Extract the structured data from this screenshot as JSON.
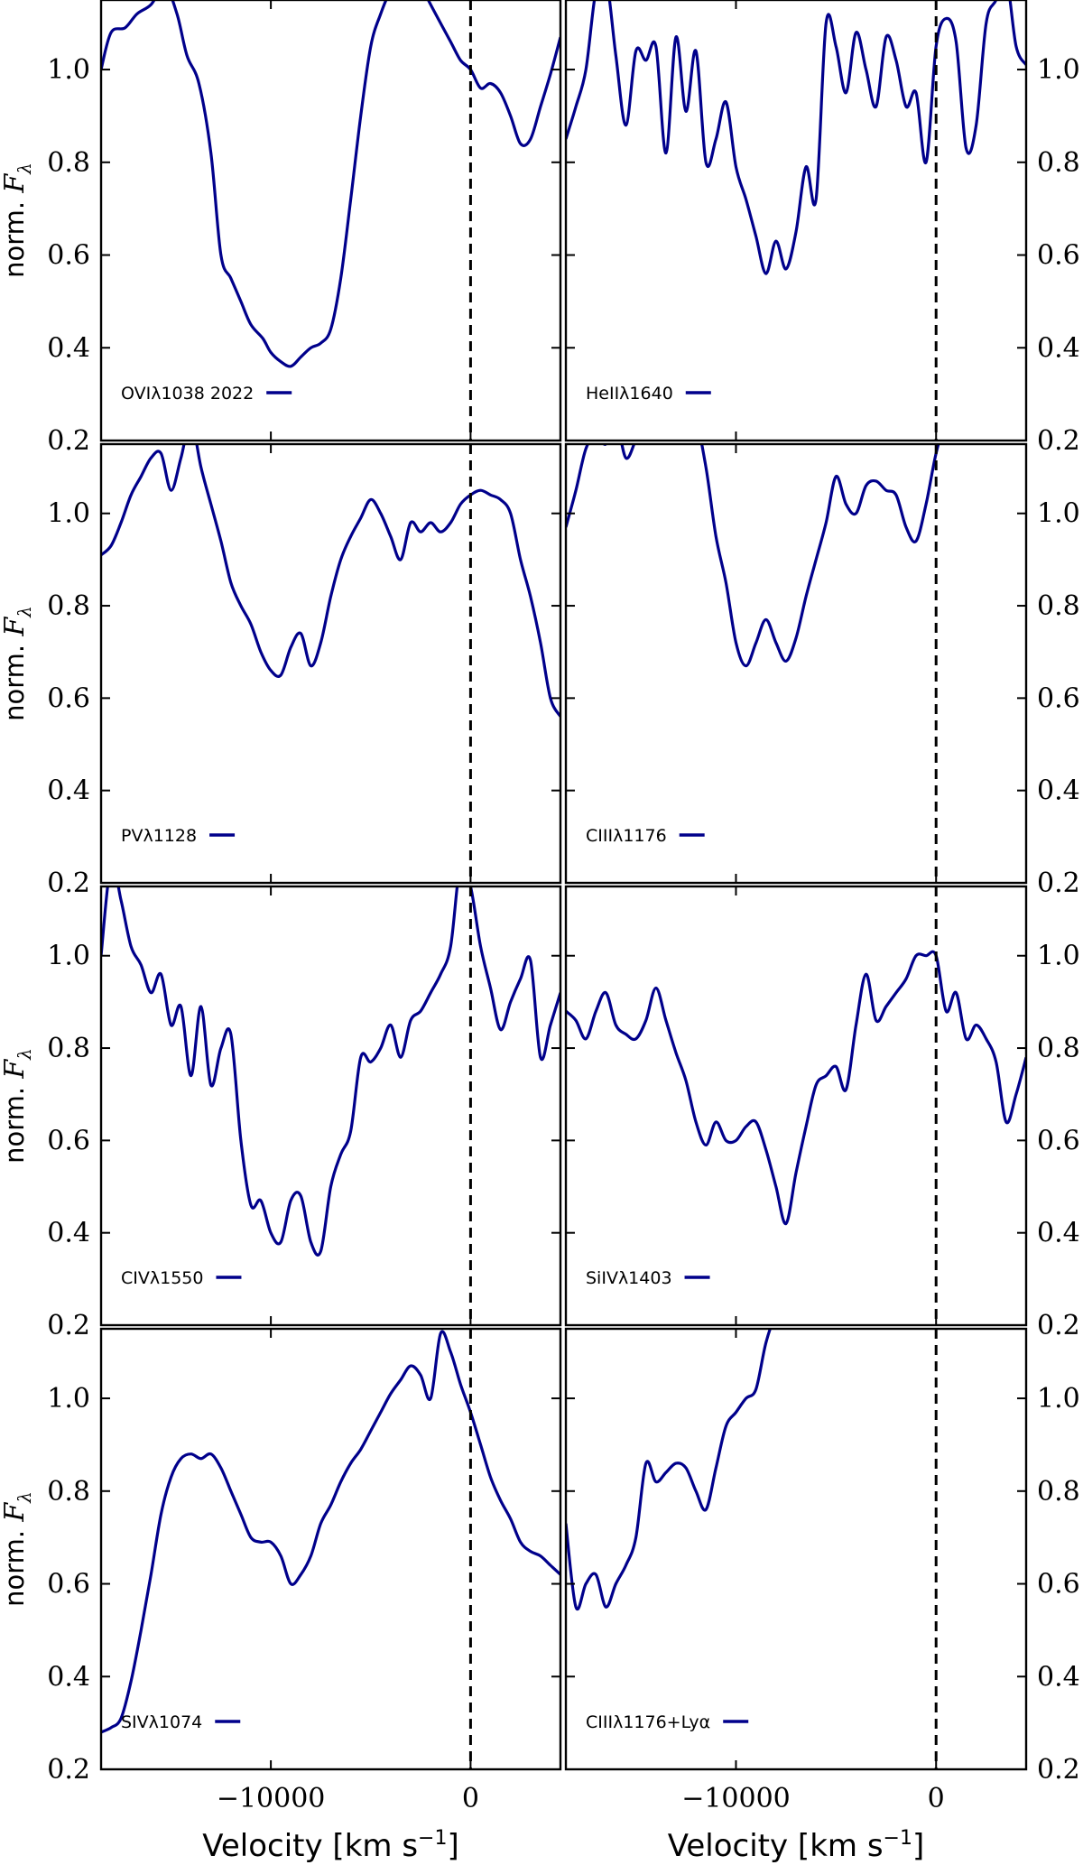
{
  "chart_data": {
    "type": "line",
    "layout": "4x2 panel grid, shared axes",
    "line_color": "#00008b",
    "vline_style": "dashed black",
    "xlim": [
      -18500,
      4500
    ],
    "ylim": [
      0.2,
      1.15
    ],
    "xticks": [
      -10000,
      0
    ],
    "xtick_labels": [
      "−10000",
      "0"
    ],
    "yticks": [
      0.2,
      0.4,
      0.6,
      0.8,
      1.0
    ],
    "ytick_labels": [
      "0.2",
      "0.4",
      "0.6",
      "0.8",
      "1.0"
    ],
    "ylabel": {
      "prefix": "norm. ",
      "var": "F",
      "sub": "λ"
    },
    "xlabel": {
      "text": "Velocity [km s",
      "sup": "−1",
      "close": "]"
    },
    "vline_x": 0,
    "legend_position": "lower-left",
    "panels": [
      {
        "row": 0,
        "col": 0,
        "label": "OVIλ1038 2022",
        "x": [
          -18500,
          -18000,
          -17300,
          -16700,
          -16000,
          -15300,
          -14700,
          -14200,
          -13600,
          -13000,
          -12500,
          -12000,
          -11500,
          -11000,
          -10400,
          -10000,
          -9500,
          -9000,
          -8500,
          -8000,
          -7500,
          -7000,
          -6500,
          -6000,
          -5500,
          -5000,
          -4500,
          -4000,
          -3500,
          -3000,
          -2500,
          -2000,
          -1500,
          -1000,
          -500,
          0,
          500,
          1000,
          1500,
          2000,
          2500,
          3000,
          3500,
          4000,
          4500
        ],
        "y": [
          1.0,
          1.08,
          1.09,
          1.12,
          1.14,
          1.18,
          1.12,
          1.03,
          0.97,
          0.82,
          0.6,
          0.55,
          0.5,
          0.45,
          0.42,
          0.39,
          0.37,
          0.36,
          0.38,
          0.4,
          0.41,
          0.44,
          0.55,
          0.72,
          0.9,
          1.05,
          1.12,
          1.17,
          1.19,
          1.2,
          1.18,
          1.14,
          1.1,
          1.06,
          1.02,
          1.0,
          0.96,
          0.97,
          0.95,
          0.9,
          0.84,
          0.85,
          0.92,
          0.99,
          1.07
        ]
      },
      {
        "row": 0,
        "col": 1,
        "label": "HeIIλ1640",
        "x": [
          -18500,
          -18000,
          -17500,
          -17000,
          -16500,
          -16000,
          -15500,
          -15000,
          -14500,
          -14000,
          -13500,
          -13000,
          -12500,
          -12000,
          -11500,
          -11000,
          -10500,
          -10000,
          -9500,
          -9000,
          -8500,
          -8000,
          -7500,
          -7000,
          -6500,
          -6000,
          -5500,
          -5000,
          -4500,
          -4000,
          -3500,
          -3000,
          -2500,
          -2000,
          -1500,
          -1000,
          -500,
          0,
          500,
          1000,
          1500,
          2000,
          2500,
          3000,
          3500,
          4000,
          4500
        ],
        "y": [
          0.85,
          0.92,
          1.0,
          1.17,
          1.2,
          1.03,
          0.88,
          1.04,
          1.02,
          1.05,
          0.82,
          1.07,
          0.91,
          1.04,
          0.8,
          0.85,
          0.93,
          0.79,
          0.72,
          0.64,
          0.56,
          0.63,
          0.57,
          0.65,
          0.79,
          0.72,
          1.1,
          1.05,
          0.95,
          1.08,
          1.0,
          0.92,
          1.07,
          1.02,
          0.92,
          0.95,
          0.8,
          1.05,
          1.11,
          1.06,
          0.83,
          0.88,
          1.1,
          1.15,
          1.2,
          1.05,
          1.01
        ]
      },
      {
        "row": 1,
        "col": 0,
        "label": "PVλ1128",
        "x": [
          -18500,
          -18000,
          -17500,
          -17000,
          -16500,
          -16000,
          -15500,
          -15000,
          -14500,
          -14000,
          -13500,
          -13000,
          -12500,
          -12000,
          -11500,
          -11000,
          -10500,
          -10000,
          -9500,
          -9000,
          -8500,
          -8000,
          -7500,
          -7000,
          -6500,
          -6000,
          -5500,
          -5000,
          -4500,
          -4000,
          -3500,
          -3000,
          -2500,
          -2000,
          -1500,
          -1000,
          -500,
          0,
          500,
          1000,
          1500,
          2000,
          2500,
          3000,
          3500,
          4000,
          4500
        ],
        "y": [
          0.91,
          0.93,
          0.98,
          1.04,
          1.08,
          1.12,
          1.13,
          1.05,
          1.12,
          1.2,
          1.1,
          1.02,
          0.94,
          0.85,
          0.8,
          0.76,
          0.7,
          0.66,
          0.65,
          0.71,
          0.74,
          0.67,
          0.72,
          0.82,
          0.9,
          0.95,
          0.99,
          1.03,
          1.0,
          0.95,
          0.9,
          0.98,
          0.96,
          0.98,
          0.96,
          0.98,
          1.02,
          1.04,
          1.05,
          1.04,
          1.03,
          1.0,
          0.9,
          0.82,
          0.72,
          0.6,
          0.56
        ]
      },
      {
        "row": 1,
        "col": 1,
        "label": "CIIIλ1176",
        "x": [
          -18500,
          -18000,
          -17500,
          -17000,
          -16500,
          -16000,
          -15500,
          -15000,
          -14500,
          -14000,
          -13500,
          -13000,
          -12500,
          -12000,
          -11500,
          -11000,
          -10500,
          -10000,
          -9500,
          -9000,
          -8500,
          -8000,
          -7500,
          -7000,
          -6500,
          -6000,
          -5500,
          -5000,
          -4500,
          -4000,
          -3500,
          -3000,
          -2500,
          -2000,
          -1500,
          -1000,
          -500,
          0,
          500,
          1000,
          1500,
          2000
        ],
        "y": [
          0.97,
          1.05,
          1.14,
          1.17,
          1.15,
          1.2,
          1.12,
          1.16,
          1.21,
          1.2,
          1.19,
          1.2,
          1.2,
          1.2,
          1.1,
          0.95,
          0.85,
          0.72,
          0.67,
          0.72,
          0.77,
          0.72,
          0.68,
          0.73,
          0.82,
          0.9,
          0.98,
          1.08,
          1.02,
          1.0,
          1.06,
          1.07,
          1.05,
          1.04,
          0.97,
          0.94,
          1.02,
          1.13,
          1.2,
          1.2,
          1.2,
          1.2
        ]
      },
      {
        "row": 2,
        "col": 0,
        "label": "CIVλ1550",
        "x": [
          -18500,
          -18000,
          -17500,
          -17000,
          -16500,
          -16000,
          -15500,
          -15000,
          -14500,
          -14000,
          -13500,
          -13000,
          -12500,
          -12000,
          -11500,
          -11000,
          -10500,
          -10000,
          -9500,
          -9000,
          -8500,
          -8000,
          -7500,
          -7000,
          -6500,
          -6000,
          -5500,
          -5000,
          -4500,
          -4000,
          -3500,
          -3000,
          -2500,
          -2000,
          -1500,
          -1000,
          -500,
          0,
          500,
          1000,
          1500,
          2000,
          2500,
          3000,
          3500,
          4000,
          4500
        ],
        "y": [
          1.0,
          1.2,
          1.12,
          1.02,
          0.98,
          0.92,
          0.96,
          0.85,
          0.89,
          0.74,
          0.89,
          0.72,
          0.8,
          0.83,
          0.6,
          0.46,
          0.47,
          0.4,
          0.38,
          0.47,
          0.48,
          0.38,
          0.36,
          0.5,
          0.57,
          0.62,
          0.78,
          0.77,
          0.8,
          0.85,
          0.78,
          0.86,
          0.88,
          0.92,
          0.96,
          1.02,
          1.2,
          1.15,
          1.02,
          0.93,
          0.84,
          0.9,
          0.95,
          0.99,
          0.78,
          0.85,
          0.92
        ]
      },
      {
        "row": 2,
        "col": 1,
        "label": "SiIVλ1403",
        "x": [
          -18500,
          -18000,
          -17500,
          -17000,
          -16500,
          -16000,
          -15500,
          -15000,
          -14500,
          -14000,
          -13500,
          -13000,
          -12500,
          -12000,
          -11500,
          -11000,
          -10500,
          -10000,
          -9500,
          -9000,
          -8500,
          -8000,
          -7500,
          -7000,
          -6500,
          -6000,
          -5500,
          -5000,
          -4500,
          -4000,
          -3500,
          -3000,
          -2500,
          -2000,
          -1500,
          -1000,
          -500,
          0,
          500,
          1000,
          1500,
          2000,
          2500,
          3000,
          3500,
          4000,
          4500
        ],
        "y": [
          0.88,
          0.86,
          0.82,
          0.88,
          0.92,
          0.85,
          0.83,
          0.82,
          0.86,
          0.93,
          0.86,
          0.79,
          0.73,
          0.64,
          0.59,
          0.64,
          0.6,
          0.6,
          0.63,
          0.64,
          0.58,
          0.5,
          0.42,
          0.53,
          0.63,
          0.72,
          0.74,
          0.76,
          0.71,
          0.85,
          0.96,
          0.86,
          0.89,
          0.92,
          0.95,
          1.0,
          1.0,
          1.0,
          0.88,
          0.92,
          0.82,
          0.85,
          0.82,
          0.77,
          0.64,
          0.7,
          0.78
        ]
      },
      {
        "row": 3,
        "col": 0,
        "label": "SIVλ1074",
        "x": [
          -18500,
          -18000,
          -17500,
          -17000,
          -16500,
          -16000,
          -15500,
          -15000,
          -14500,
          -14000,
          -13500,
          -13000,
          -12500,
          -12000,
          -11500,
          -11000,
          -10500,
          -10000,
          -9500,
          -9000,
          -8500,
          -8000,
          -7500,
          -7000,
          -6500,
          -6000,
          -5500,
          -5000,
          -4500,
          -4000,
          -3500,
          -3000,
          -2500,
          -2000,
          -1500,
          -1000,
          -500,
          0,
          500,
          1000,
          1500,
          2000,
          2500,
          3000,
          3500,
          4000,
          4500
        ],
        "y": [
          0.28,
          0.29,
          0.31,
          0.39,
          0.5,
          0.62,
          0.75,
          0.83,
          0.87,
          0.88,
          0.87,
          0.88,
          0.85,
          0.8,
          0.75,
          0.7,
          0.69,
          0.69,
          0.66,
          0.6,
          0.62,
          0.66,
          0.73,
          0.77,
          0.82,
          0.86,
          0.89,
          0.93,
          0.97,
          1.01,
          1.04,
          1.07,
          1.05,
          1.0,
          1.14,
          1.1,
          1.03,
          0.97,
          0.9,
          0.83,
          0.78,
          0.74,
          0.69,
          0.67,
          0.66,
          0.64,
          0.62
        ]
      },
      {
        "row": 3,
        "col": 1,
        "label": "CIIIλ1176+Lyα",
        "x": [
          -18500,
          -18000,
          -17500,
          -17000,
          -16500,
          -16000,
          -15500,
          -15000,
          -14500,
          -14000,
          -13500,
          -13000,
          -12500,
          -12000,
          -11500,
          -11000,
          -10500,
          -10000,
          -9500,
          -9000,
          -8500,
          -8000,
          -7500,
          -7000,
          -6500,
          -6000,
          -5500,
          -5000,
          -4500
        ],
        "y": [
          0.73,
          0.55,
          0.6,
          0.62,
          0.55,
          0.6,
          0.64,
          0.7,
          0.86,
          0.82,
          0.84,
          0.86,
          0.85,
          0.8,
          0.76,
          0.85,
          0.94,
          0.97,
          1.0,
          1.02,
          1.12,
          1.18,
          1.2,
          1.2,
          1.2,
          1.2,
          1.2,
          1.2,
          1.2
        ]
      }
    ]
  }
}
